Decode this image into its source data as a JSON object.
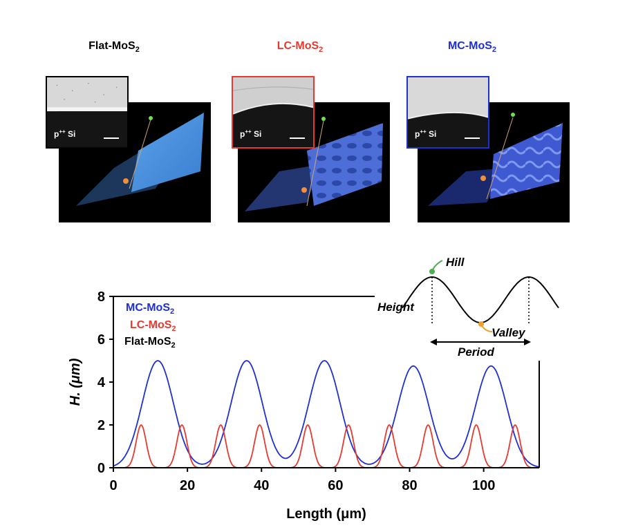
{
  "panels": [
    {
      "title_main": "Flat-MoS",
      "title_sub": "2",
      "color": "#000000",
      "substrate_base": "p",
      "substrate_sup": "++",
      "substrate_rest": " Si"
    },
    {
      "title_main": "LC-MoS",
      "title_sub": "2",
      "color": "#e8392f",
      "substrate_base": "p",
      "substrate_sup": "++",
      "substrate_rest": " Si"
    },
    {
      "title_main": "MC-MoS",
      "title_sub": "2",
      "color": "#1f2fd6",
      "substrate_base": "p",
      "substrate_sup": "++",
      "substrate_rest": " Si"
    }
  ],
  "schematic": {
    "hill": "Hill",
    "valley": "Valley",
    "height": "Height",
    "period": "Period"
  },
  "chart_data": {
    "type": "line",
    "xlabel": "Length (μm)",
    "ylabel": "H. (μm)",
    "xlim": [
      0,
      115
    ],
    "ylim": [
      0,
      8
    ],
    "xticks": [
      0,
      20,
      40,
      60,
      80,
      100
    ],
    "yticks": [
      0,
      2,
      4,
      6,
      8
    ],
    "legend": [
      {
        "main": "MC-MoS",
        "sub": "2",
        "color": "#1f2fd6"
      },
      {
        "main": "LC-MoS",
        "sub": "2",
        "color": "#e8392f"
      },
      {
        "main": "Flat-MoS",
        "sub": "2",
        "color": "#000000"
      }
    ],
    "series": [
      {
        "name": "MC-MoS2",
        "color": "#1f2fd6",
        "shape": "broad peaks",
        "peaks": [
          {
            "x": 12,
            "y": 5.0
          },
          {
            "x": 36,
            "y": 5.0
          },
          {
            "x": 57,
            "y": 5.0
          },
          {
            "x": 81,
            "y": 4.75
          },
          {
            "x": 102,
            "y": 4.75
          }
        ]
      },
      {
        "name": "LC-MoS2",
        "color": "#e8392f",
        "shape": "narrow peaks",
        "peaks": [
          {
            "x": 7.5,
            "y": 2.0
          },
          {
            "x": 18.5,
            "y": 2.0
          },
          {
            "x": 29,
            "y": 2.0
          },
          {
            "x": 39.5,
            "y": 2.0
          },
          {
            "x": 52.5,
            "y": 2.0
          },
          {
            "x": 63.5,
            "y": 2.0
          },
          {
            "x": 74.5,
            "y": 2.0
          },
          {
            "x": 85,
            "y": 2.0
          },
          {
            "x": 98,
            "y": 2.0
          },
          {
            "x": 108.5,
            "y": 2.0
          }
        ]
      },
      {
        "name": "Flat-MoS2",
        "color": "#000000",
        "shape": "flat",
        "value": 0
      }
    ]
  }
}
